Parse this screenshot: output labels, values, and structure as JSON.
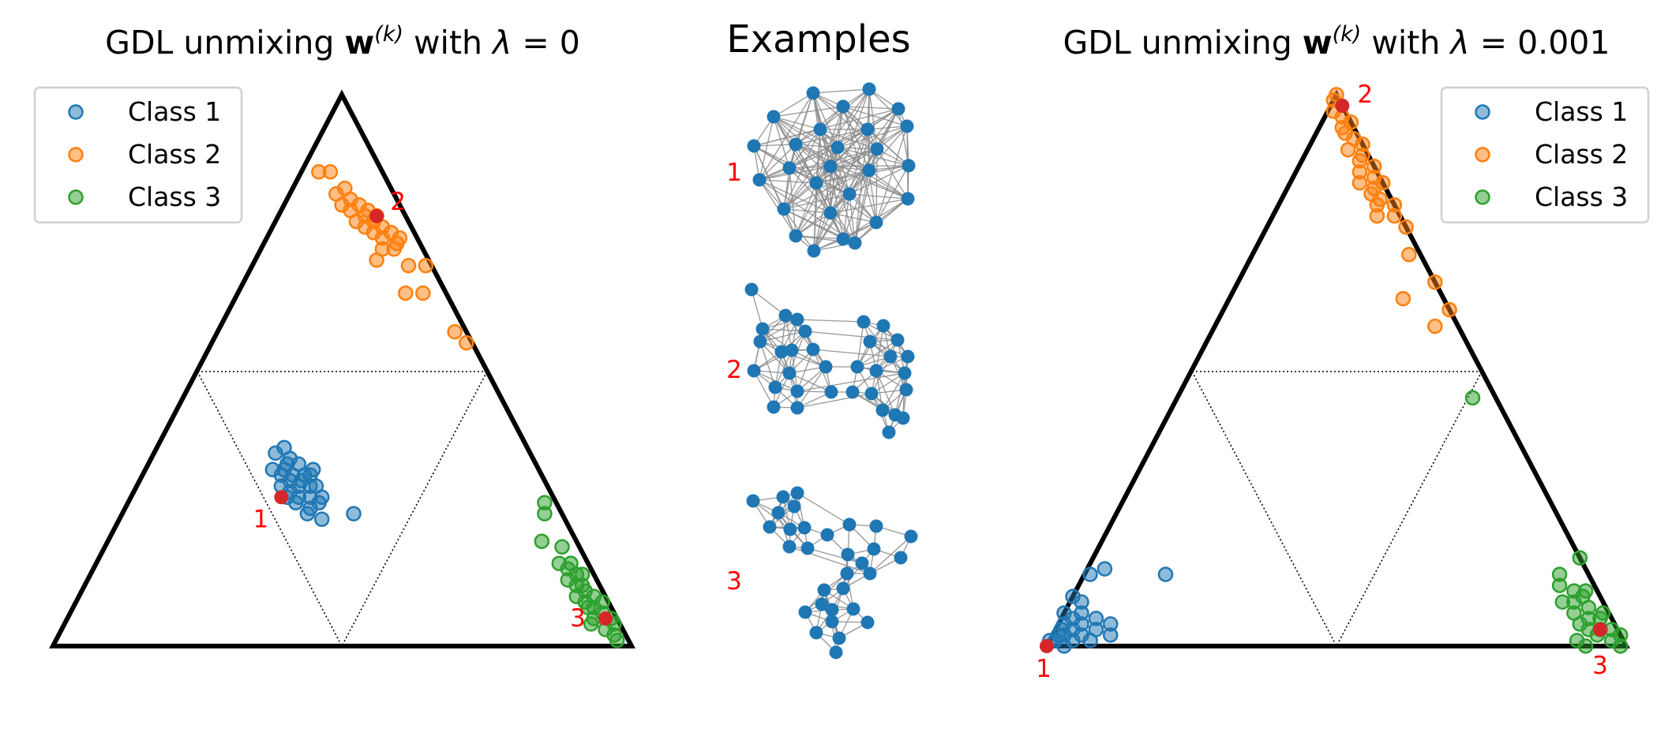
{
  "colors": {
    "class1": "#1f77b4",
    "class2": "#ff7f0e",
    "class3": "#2ca02c",
    "atom": "#d62728",
    "edge": "#8c8c8c",
    "frame": "#000000"
  },
  "chart_data": [
    {
      "type": "scatter",
      "panel": "left",
      "title_parts": [
        "GDL unmixing ",
        "w",
        "(k)",
        " with ",
        "λ",
        " = 0"
      ],
      "coordinate_system": "barycentric simplex (w1, w2, w3)",
      "vertices": {
        "bottom_left": "atom 1 (w1=1)",
        "top": "atom 2 (w2=1)",
        "bottom_right": "atom 3 (w3=1)"
      },
      "legend": {
        "placement": "upper-left",
        "entries": [
          "Class 1",
          "Class 2",
          "Class 3"
        ]
      },
      "atom_labels": [
        "1",
        "2",
        "3"
      ],
      "atoms": [
        {
          "label": "1",
          "w": [
            0.47,
            0.27,
            0.26
          ]
        },
        {
          "label": "2",
          "w": [
            0.05,
            0.78,
            0.17
          ]
        },
        {
          "label": "3",
          "w": [
            0.02,
            0.05,
            0.93
          ]
        }
      ],
      "series": [
        {
          "name": "Class 1",
          "points": [
            [
              0.42,
              0.34,
              0.24
            ],
            [
              0.43,
              0.33,
              0.24
            ],
            [
              0.44,
              0.32,
              0.24
            ],
            [
              0.43,
              0.31,
              0.26
            ],
            [
              0.45,
              0.31,
              0.24
            ],
            [
              0.44,
              0.3,
              0.26
            ],
            [
              0.42,
              0.3,
              0.28
            ],
            [
              0.46,
              0.29,
              0.25
            ],
            [
              0.45,
              0.28,
              0.27
            ],
            [
              0.44,
              0.27,
              0.29
            ],
            [
              0.42,
              0.27,
              0.31
            ],
            [
              0.46,
              0.27,
              0.27
            ],
            [
              0.45,
              0.26,
              0.29
            ],
            [
              0.41,
              0.29,
              0.3
            ],
            [
              0.4,
              0.31,
              0.29
            ],
            [
              0.44,
              0.35,
              0.21
            ],
            [
              0.41,
              0.33,
              0.26
            ],
            [
              0.43,
              0.25,
              0.32
            ],
            [
              0.41,
              0.26,
              0.33
            ],
            [
              0.43,
              0.29,
              0.28
            ],
            [
              0.4,
              0.29,
              0.31
            ],
            [
              0.39,
              0.32,
              0.29
            ],
            [
              0.42,
              0.36,
              0.22
            ],
            [
              0.44,
              0.24,
              0.32
            ],
            [
              0.42,
              0.23,
              0.35
            ],
            [
              0.41,
              0.31,
              0.28
            ],
            [
              0.46,
              0.32,
              0.22
            ],
            [
              0.4,
              0.27,
              0.33
            ],
            [
              0.36,
              0.24,
              0.4
            ]
          ]
        },
        {
          "name": "Class 2",
          "points": [
            [
              0.1,
              0.82,
              0.08
            ],
            [
              0.08,
              0.83,
              0.09
            ],
            [
              0.1,
              0.8,
              0.1
            ],
            [
              0.08,
              0.81,
              0.11
            ],
            [
              0.09,
              0.79,
              0.12
            ],
            [
              0.07,
              0.8,
              0.13
            ],
            [
              0.09,
              0.77,
              0.14
            ],
            [
              0.07,
              0.78,
              0.15
            ],
            [
              0.06,
              0.79,
              0.15
            ],
            [
              0.08,
              0.76,
              0.16
            ],
            [
              0.06,
              0.77,
              0.17
            ],
            [
              0.05,
              0.78,
              0.17
            ],
            [
              0.07,
              0.75,
              0.18
            ],
            [
              0.05,
              0.76,
              0.19
            ],
            [
              0.06,
              0.74,
              0.2
            ],
            [
              0.04,
              0.75,
              0.21
            ],
            [
              0.04,
              0.73,
              0.23
            ],
            [
              0.05,
              0.72,
              0.23
            ],
            [
              0.07,
              0.72,
              0.21
            ],
            [
              0.03,
              0.74,
              0.23
            ],
            [
              0.09,
              0.86,
              0.05
            ],
            [
              0.11,
              0.86,
              0.03
            ],
            [
              0.09,
              0.7,
              0.21
            ],
            [
              0.04,
              0.69,
              0.27
            ],
            [
              0.07,
              0.64,
              0.29
            ],
            [
              0.04,
              0.64,
              0.32
            ],
            [
              0.01,
              0.69,
              0.3
            ],
            [
              0.02,
              0.57,
              0.41
            ],
            [
              0.01,
              0.55,
              0.44
            ],
            [
              0.06,
              0.77,
              0.17
            ]
          ]
        },
        {
          "name": "Class 3",
          "points": [
            [
              0.02,
              0.26,
              0.72
            ],
            [
              0.03,
              0.24,
              0.73
            ],
            [
              0.06,
              0.19,
              0.75
            ],
            [
              0.03,
              0.18,
              0.79
            ],
            [
              0.03,
              0.15,
              0.82
            ],
            [
              0.02,
              0.13,
              0.85
            ],
            [
              0.04,
              0.11,
              0.85
            ],
            [
              0.03,
              0.1,
              0.87
            ],
            [
              0.02,
              0.09,
              0.89
            ],
            [
              0.04,
              0.08,
              0.88
            ],
            [
              0.03,
              0.07,
              0.9
            ],
            [
              0.02,
              0.06,
              0.92
            ],
            [
              0.04,
              0.05,
              0.91
            ],
            [
              0.01,
              0.05,
              0.94
            ],
            [
              0.03,
              0.03,
              0.94
            ],
            [
              0.02,
              0.02,
              0.96
            ],
            [
              0.05,
              0.15,
              0.8
            ],
            [
              0.05,
              0.12,
              0.83
            ],
            [
              0.03,
              0.13,
              0.84
            ],
            [
              0.05,
              0.09,
              0.86
            ],
            [
              0.04,
              0.07,
              0.89
            ],
            [
              0.01,
              0.04,
              0.95
            ],
            [
              0.02,
              0.01,
              0.97
            ],
            [
              0.03,
              0.11,
              0.86
            ],
            [
              0.04,
              0.14,
              0.82
            ],
            [
              0.01,
              0.08,
              0.91
            ],
            [
              0.05,
              0.04,
              0.91
            ]
          ]
        }
      ]
    },
    {
      "type": "scatter",
      "panel": "right",
      "title_parts": [
        "GDL unmixing ",
        "w",
        "(k)",
        " with ",
        "λ",
        " = 0.001"
      ],
      "coordinate_system": "barycentric simplex (w1, w2, w3)",
      "vertices": {
        "bottom_left": "atom 1 (w1=1)",
        "top": "atom 2 (w2=1)",
        "bottom_right": "atom 3 (w3=1)"
      },
      "legend": {
        "placement": "upper-right",
        "entries": [
          "Class 1",
          "Class 2",
          "Class 3"
        ]
      },
      "atom_labels": [
        "1",
        "2",
        "3"
      ],
      "atoms": [
        {
          "label": "1",
          "w": [
            1.0,
            0.0,
            0.0
          ]
        },
        {
          "label": "2",
          "w": [
            0.0,
            0.98,
            0.02
          ]
        },
        {
          "label": "3",
          "w": [
            0.03,
            0.03,
            0.94
          ]
        }
      ],
      "series": [
        {
          "name": "Class 1",
          "points": [
            [
              0.98,
              0.01,
              0.01
            ],
            [
              0.97,
              0.02,
              0.01
            ],
            [
              0.96,
              0.03,
              0.01
            ],
            [
              0.95,
              0.04,
              0.01
            ],
            [
              0.96,
              0.02,
              0.02
            ],
            [
              0.94,
              0.03,
              0.03
            ],
            [
              0.95,
              0.01,
              0.04
            ],
            [
              0.93,
              0.05,
              0.02
            ],
            [
              0.93,
              0.02,
              0.05
            ],
            [
              0.92,
              0.04,
              0.04
            ],
            [
              0.91,
              0.06,
              0.03
            ],
            [
              0.92,
              0.01,
              0.07
            ],
            [
              0.9,
              0.03,
              0.07
            ],
            [
              0.89,
              0.05,
              0.06
            ],
            [
              0.9,
              0.08,
              0.02
            ],
            [
              0.88,
              0.02,
              0.1
            ],
            [
              0.94,
              0.06,
              0.0
            ],
            [
              0.97,
              0.0,
              0.03
            ],
            [
              0.91,
              0.09,
              0.0
            ],
            [
              0.87,
              0.04,
              0.09
            ],
            [
              0.86,
              0.13,
              0.01
            ],
            [
              0.83,
              0.14,
              0.03
            ],
            [
              0.73,
              0.13,
              0.14
            ],
            [
              0.99,
              0.01,
              0.0
            ]
          ]
        },
        {
          "name": "Class 2",
          "points": [
            [
              0.0,
              1.0,
              0.0
            ],
            [
              0.01,
              0.99,
              0.0
            ],
            [
              0.01,
              0.96,
              0.03
            ],
            [
              0.02,
              0.94,
              0.04
            ],
            [
              0.0,
              0.95,
              0.05
            ],
            [
              0.01,
              0.92,
              0.07
            ],
            [
              0.0,
              0.91,
              0.09
            ],
            [
              0.03,
              0.9,
              0.07
            ],
            [
              0.01,
              0.89,
              0.1
            ],
            [
              0.02,
              0.88,
              0.1
            ],
            [
              0.0,
              0.87,
              0.13
            ],
            [
              0.03,
              0.86,
              0.11
            ],
            [
              0.01,
              0.85,
              0.14
            ],
            [
              0.0,
              0.84,
              0.16
            ],
            [
              0.02,
              0.83,
              0.15
            ],
            [
              0.04,
              0.84,
              0.12
            ],
            [
              0.03,
              0.82,
              0.15
            ],
            [
              0.02,
              0.81,
              0.17
            ],
            [
              0.0,
              0.8,
              0.2
            ],
            [
              0.03,
              0.8,
              0.17
            ],
            [
              0.01,
              0.78,
              0.21
            ],
            [
              0.0,
              0.76,
              0.24
            ],
            [
              0.04,
              0.78,
              0.18
            ],
            [
              0.02,
              0.93,
              0.05
            ],
            [
              0.02,
              0.71,
              0.27
            ],
            [
              0.07,
              0.63,
              0.3
            ],
            [
              0.0,
              0.66,
              0.34
            ],
            [
              0.04,
              0.58,
              0.38
            ],
            [
              0.0,
              0.61,
              0.39
            ],
            [
              0.02,
              0.97,
              0.01
            ]
          ]
        },
        {
          "name": "Class 3",
          "points": [
            [
              0.04,
              0.45,
              0.51
            ],
            [
              0.0,
              0.16,
              0.84
            ],
            [
              0.05,
              0.13,
              0.82
            ],
            [
              0.06,
              0.11,
              0.83
            ],
            [
              0.04,
              0.1,
              0.86
            ],
            [
              0.02,
              0.1,
              0.88
            ],
            [
              0.05,
              0.08,
              0.87
            ],
            [
              0.03,
              0.07,
              0.9
            ],
            [
              0.06,
              0.06,
              0.88
            ],
            [
              0.04,
              0.05,
              0.91
            ],
            [
              0.02,
              0.05,
              0.93
            ],
            [
              0.05,
              0.03,
              0.92
            ],
            [
              0.03,
              0.03,
              0.94
            ],
            [
              0.01,
              0.03,
              0.96
            ],
            [
              0.02,
              0.01,
              0.97
            ],
            [
              0.04,
              0.02,
              0.94
            ],
            [
              0.06,
              0.04,
              0.9
            ],
            [
              0.01,
              0.06,
              0.93
            ],
            [
              0.03,
              0.09,
              0.88
            ],
            [
              0.07,
              0.08,
              0.85
            ],
            [
              0.08,
              0.01,
              0.91
            ],
            [
              0.07,
              0.0,
              0.93
            ],
            [
              0.0,
              0.02,
              0.98
            ],
            [
              0.01,
              0.0,
              0.99
            ]
          ]
        }
      ]
    },
    {
      "type": "graph_examples",
      "panel": "middle",
      "title": "Examples",
      "examples": [
        {
          "label": "1"
        },
        {
          "label": "2"
        },
        {
          "label": "3"
        }
      ]
    }
  ]
}
